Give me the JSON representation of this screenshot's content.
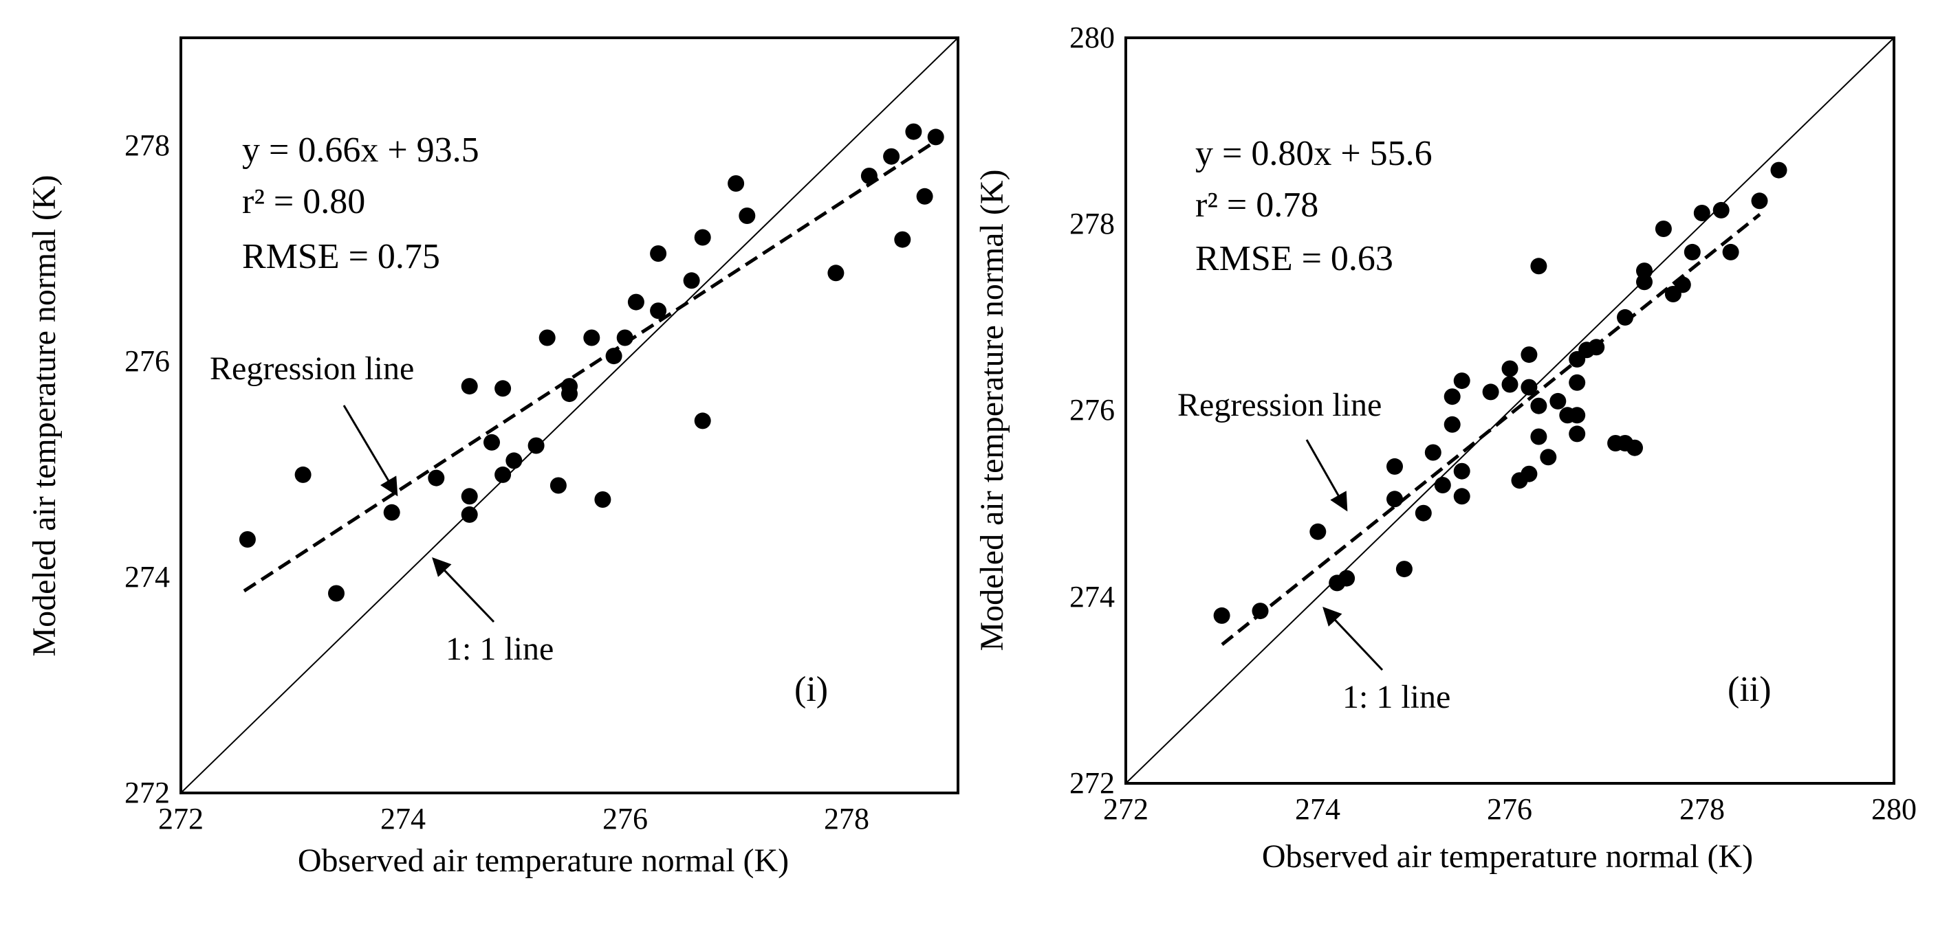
{
  "chart_data": [
    {
      "type": "scatter",
      "panel_label": "(i)",
      "xlabel": "Observed air temperature normal (K)",
      "ylabel": "Modeled air temperature normal (K)",
      "xlim": [
        272,
        279
      ],
      "ylim": [
        272,
        279
      ],
      "xticks": [
        "272",
        "274",
        "276",
        "278"
      ],
      "yticks": [
        "272",
        "274",
        "276",
        "278"
      ],
      "equation": "y = 0.66x + 93.5",
      "r2": "r² = 0.80",
      "rmse": "RMSE = 0.75",
      "regression": {
        "slope": 0.66,
        "intercept": 93.5,
        "x_range": [
          272.6,
          278.8
        ],
        "label": "Regression line"
      },
      "identity_line": {
        "label": "1: 1 line"
      },
      "points": [
        [
          272.6,
          274.35
        ],
        [
          273.1,
          274.95
        ],
        [
          273.4,
          273.85
        ],
        [
          273.9,
          274.6
        ],
        [
          274.3,
          274.92
        ],
        [
          274.6,
          275.77
        ],
        [
          274.6,
          274.75
        ],
        [
          274.6,
          274.58
        ],
        [
          274.8,
          275.25
        ],
        [
          274.9,
          275.75
        ],
        [
          274.9,
          274.95
        ],
        [
          275.0,
          275.08
        ],
        [
          275.2,
          275.22
        ],
        [
          275.3,
          276.22
        ],
        [
          275.4,
          274.85
        ],
        [
          275.5,
          275.77
        ],
        [
          275.5,
          275.7
        ],
        [
          275.7,
          276.22
        ],
        [
          275.8,
          274.72
        ],
        [
          275.9,
          276.05
        ],
        [
          276.0,
          276.22
        ],
        [
          276.1,
          276.55
        ],
        [
          276.3,
          276.47
        ],
        [
          276.3,
          277.0
        ],
        [
          276.6,
          276.75
        ],
        [
          276.7,
          277.15
        ],
        [
          276.7,
          275.45
        ],
        [
          277.0,
          277.65
        ],
        [
          277.1,
          277.35
        ],
        [
          277.9,
          276.82
        ],
        [
          278.2,
          277.72
        ],
        [
          278.4,
          277.9
        ],
        [
          278.5,
          277.13
        ],
        [
          278.6,
          278.13
        ],
        [
          278.7,
          277.53
        ],
        [
          278.8,
          278.08
        ]
      ]
    },
    {
      "type": "scatter",
      "panel_label": "(ii)",
      "xlabel": "Observed air temperature normal (K)",
      "ylabel": "Modeled air temperature normal (K)",
      "xlim": [
        272,
        280
      ],
      "ylim": [
        272,
        280
      ],
      "xticks": [
        "272",
        "274",
        "276",
        "278",
        "280"
      ],
      "yticks": [
        "272",
        "274",
        "276",
        "278",
        "280"
      ],
      "equation": "y = 0.80x + 55.6",
      "r2": "r² = 0.78",
      "rmse": "RMSE = 0.63",
      "regression": {
        "slope": 0.8,
        "intercept": 55.6,
        "x_range": [
          273.0,
          278.6
        ],
        "label": "Regression line"
      },
      "identity_line": {
        "label": "1: 1 line"
      },
      "points": [
        [
          273.0,
          273.8
        ],
        [
          273.4,
          273.85
        ],
        [
          274.0,
          274.7
        ],
        [
          274.2,
          274.15
        ],
        [
          274.3,
          274.2
        ],
        [
          274.8,
          275.4
        ],
        [
          274.8,
          275.05
        ],
        [
          274.9,
          274.3
        ],
        [
          275.1,
          274.9
        ],
        [
          275.2,
          275.55
        ],
        [
          275.3,
          275.2
        ],
        [
          275.4,
          275.85
        ],
        [
          275.4,
          276.15
        ],
        [
          275.5,
          276.32
        ],
        [
          275.5,
          275.35
        ],
        [
          275.5,
          275.08
        ],
        [
          275.8,
          276.2
        ],
        [
          276.0,
          276.45
        ],
        [
          276.0,
          276.28
        ],
        [
          276.1,
          275.25
        ],
        [
          276.2,
          276.6
        ],
        [
          276.2,
          276.25
        ],
        [
          276.2,
          275.32
        ],
        [
          276.3,
          277.55
        ],
        [
          276.3,
          276.05
        ],
        [
          276.3,
          275.72
        ],
        [
          276.4,
          275.5
        ],
        [
          276.5,
          276.1
        ],
        [
          276.6,
          275.95
        ],
        [
          276.7,
          276.55
        ],
        [
          276.7,
          276.3
        ],
        [
          276.7,
          275.95
        ],
        [
          276.7,
          275.75
        ],
        [
          276.8,
          276.65
        ],
        [
          276.9,
          276.68
        ],
        [
          277.1,
          275.65
        ],
        [
          277.2,
          277.0
        ],
        [
          277.2,
          275.65
        ],
        [
          277.3,
          275.6
        ],
        [
          277.4,
          277.5
        ],
        [
          277.4,
          277.38
        ],
        [
          277.6,
          277.95
        ],
        [
          277.7,
          277.25
        ],
        [
          277.8,
          277.35
        ],
        [
          277.9,
          277.7
        ],
        [
          278.0,
          278.12
        ],
        [
          278.2,
          278.15
        ],
        [
          278.3,
          277.7
        ],
        [
          278.6,
          278.25
        ],
        [
          278.8,
          278.58
        ]
      ]
    }
  ]
}
